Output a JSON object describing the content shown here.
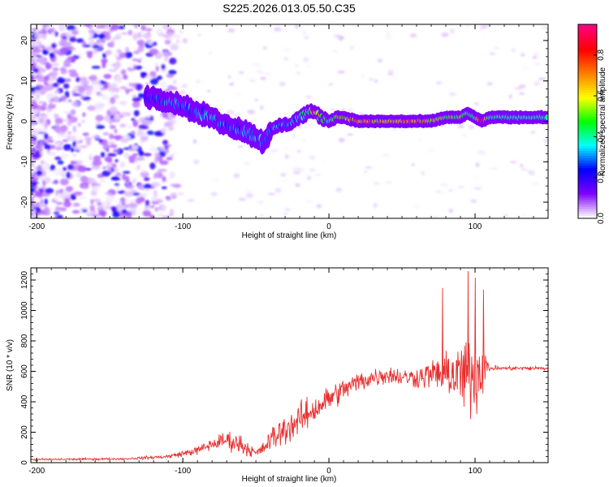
{
  "title": "S225.2026.013.05.50.C35",
  "chart_data": [
    {
      "type": "heatmap",
      "description_id": "spectrogram",
      "xlabel": "Height of straight line (km)",
      "ylabel": "Frequency (Hz)",
      "xlim": [
        -204,
        150
      ],
      "ylim": [
        -24,
        24
      ],
      "x_ticks": [
        -200,
        -100,
        0,
        100
      ],
      "x_tick_labels": [
        "-200",
        "-100",
        "0",
        "100"
      ],
      "y_ticks": [
        -20,
        -10,
        0,
        10,
        20
      ],
      "y_tick_labels": [
        "-20",
        "-10",
        "0",
        "10",
        "20"
      ],
      "colorbar": {
        "label": "Normalized spectral amplitude",
        "range": [
          0.0,
          0.95
        ],
        "ticks": [
          0.0,
          0.2,
          0.4,
          0.6,
          0.8
        ],
        "tick_labels": [
          "0.0",
          "0.2",
          "0.4",
          "0.6",
          "0.8"
        ],
        "colormap": [
          "#ffffff",
          "#7f00ff",
          "#0000ff",
          "#00ffff",
          "#00ff00",
          "#ffff00",
          "#ff7f00",
          "#ff0000",
          "#ff0080"
        ]
      },
      "ridge": {
        "description": "main Doppler trace: x in km, center frequency in Hz, amplitude 0-1",
        "points": [
          [
            -120,
            6,
            0.25
          ],
          [
            -110,
            5,
            0.35
          ],
          [
            -100,
            4,
            0.3
          ],
          [
            -90,
            2,
            0.3
          ],
          [
            -80,
            1,
            0.35
          ],
          [
            -70,
            -1,
            0.3
          ],
          [
            -60,
            -2,
            0.3
          ],
          [
            -55,
            -3,
            0.35
          ],
          [
            -50,
            -4,
            0.35
          ],
          [
            -45,
            -5,
            0.3
          ],
          [
            -40,
            -3,
            0.3
          ],
          [
            -35,
            -1,
            0.3
          ],
          [
            -30,
            -1,
            0.3
          ],
          [
            -25,
            0,
            0.3
          ],
          [
            -20,
            1,
            0.35
          ],
          [
            -15,
            2,
            0.45
          ],
          [
            -10,
            2,
            0.7
          ],
          [
            -5,
            1,
            0.55
          ],
          [
            0,
            0,
            0.35
          ],
          [
            5,
            1,
            0.55
          ],
          [
            10,
            1,
            0.6
          ],
          [
            20,
            0,
            0.7
          ],
          [
            30,
            0,
            0.65
          ],
          [
            40,
            0,
            0.55
          ],
          [
            50,
            0,
            0.65
          ],
          [
            60,
            0,
            0.7
          ],
          [
            70,
            0,
            0.6
          ],
          [
            80,
            1,
            0.5
          ],
          [
            90,
            1,
            0.45
          ],
          [
            95,
            2,
            0.4
          ],
          [
            100,
            1,
            0.4
          ],
          [
            105,
            0,
            0.85
          ],
          [
            110,
            1,
            0.4
          ],
          [
            120,
            1,
            0.4
          ],
          [
            130,
            1,
            0.4
          ],
          [
            140,
            1,
            0.4
          ],
          [
            150,
            1,
            0.4
          ]
        ]
      }
    },
    {
      "type": "line",
      "description_id": "snr",
      "xlabel": "Height of straight line (km)",
      "ylabel": "SNR (10 * v/v)",
      "xlim": [
        -204,
        150
      ],
      "ylim": [
        0,
        1280
      ],
      "x_ticks": [
        -200,
        -100,
        0,
        100
      ],
      "x_tick_labels": [
        "-200",
        "-100",
        "0",
        "100"
      ],
      "y_ticks": [
        0,
        200,
        400,
        600,
        800,
        1000,
        1200
      ],
      "y_tick_labels": [
        "0",
        "200",
        "400",
        "600",
        "800",
        "1000",
        "1200"
      ],
      "color": "#e83030",
      "envelope": {
        "description": "approximate mean SNR trend and fluctuation amplitude vs height",
        "x": [
          -204,
          -140,
          -110,
          -90,
          -80,
          -70,
          -60,
          -50,
          -45,
          -40,
          -30,
          -20,
          -10,
          0,
          10,
          20,
          30,
          40,
          50,
          60,
          70,
          80,
          90,
          100,
          105,
          110,
          120,
          150
        ],
        "mean": [
          20,
          25,
          40,
          80,
          120,
          150,
          120,
          60,
          90,
          150,
          220,
          280,
          350,
          420,
          480,
          530,
          560,
          580,
          560,
          560,
          580,
          580,
          580,
          580,
          620,
          620,
          620,
          620
        ],
        "spread": [
          10,
          10,
          20,
          40,
          60,
          90,
          100,
          40,
          60,
          120,
          150,
          160,
          140,
          130,
          110,
          100,
          100,
          90,
          90,
          100,
          150,
          180,
          350,
          400,
          300,
          30,
          20,
          20
        ]
      }
    }
  ]
}
